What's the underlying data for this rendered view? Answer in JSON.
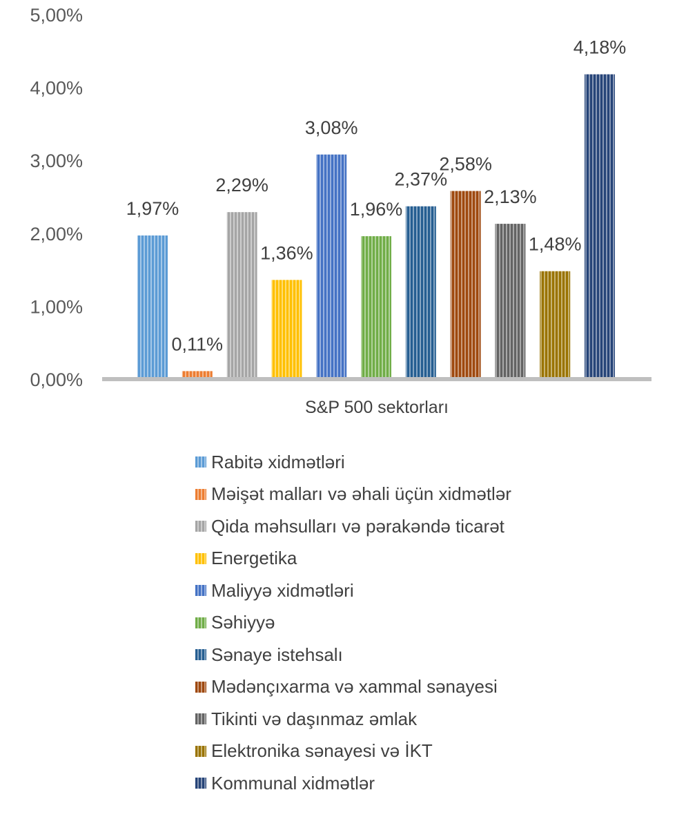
{
  "chart_data": {
    "type": "bar",
    "xlabel": "S&P 500 sektorları",
    "ylabel": "",
    "ylim": [
      0,
      5
    ],
    "yticks": [
      "0,00%",
      "1,00%",
      "2,00%",
      "3,00%",
      "4,00%",
      "5,00%"
    ],
    "legend_position": "bottom",
    "grid": false,
    "series": [
      {
        "name": "Rabitə xidmətləri",
        "value": 1.97,
        "label": "1,97%",
        "color": "#5B9BD5"
      },
      {
        "name": "Məişət malları və əhali üçün xidmətlər",
        "value": 0.11,
        "label": "0,11%",
        "color": "#ED7D31"
      },
      {
        "name": "Qida məhsulları və pərakəndə ticarət",
        "value": 2.29,
        "label": "2,29%",
        "color": "#A5A5A5"
      },
      {
        "name": "Energetika",
        "value": 1.36,
        "label": "1,36%",
        "color": "#FFC000"
      },
      {
        "name": "Maliyyə xidmətləri",
        "value": 3.08,
        "label": "3,08%",
        "color": "#4472C4"
      },
      {
        "name": "Səhiyyə",
        "value": 1.96,
        "label": "1,96%",
        "color": "#70AD47"
      },
      {
        "name": "Sənaye istehsalı",
        "value": 2.37,
        "label": "2,37%",
        "color": "#255E91"
      },
      {
        "name": "Mədənçıxarma və xammal sənayesi",
        "value": 2.58,
        "label": "2,58%",
        "color": "#9E480E"
      },
      {
        "name": "Tikinti və daşınmaz əmlak",
        "value": 2.13,
        "label": "2,13%",
        "color": "#636363"
      },
      {
        "name": "Elektronika sənayesi və İKT",
        "value": 1.48,
        "label": "1,48%",
        "color": "#997300"
      },
      {
        "name": "Kommunal xidmətlər",
        "value": 4.18,
        "label": "4,18%",
        "color": "#264478"
      }
    ]
  }
}
